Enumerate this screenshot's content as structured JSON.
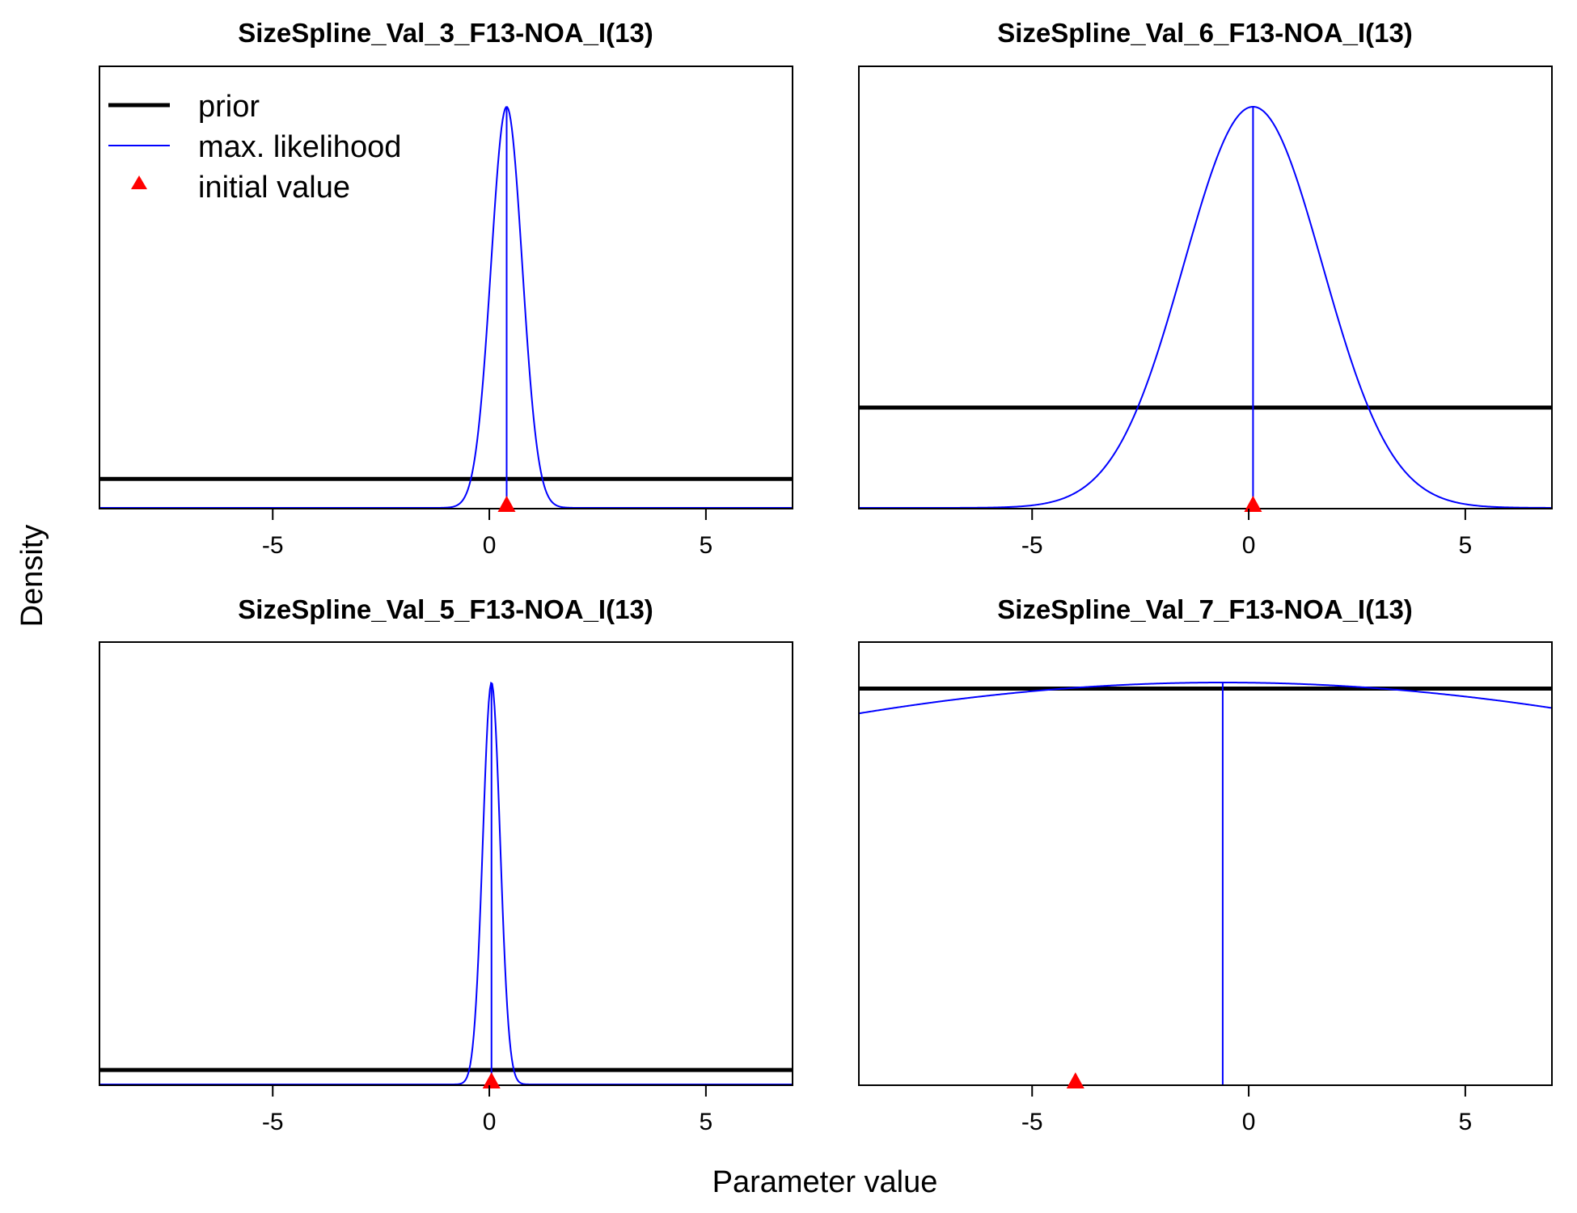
{
  "figure": {
    "xlabel": "Parameter value",
    "ylabel": "Density"
  },
  "legend": {
    "position": "top-left",
    "entries": [
      {
        "label": "prior",
        "style": "thick-line",
        "color": "#000000"
      },
      {
        "label": "max. likelihood",
        "style": "thin-line",
        "color": "#0000FF"
      },
      {
        "label": "initial value",
        "style": "triangle",
        "color": "#FF0000"
      }
    ]
  },
  "colors": {
    "prior": "#000000",
    "likelihood": "#0000FF",
    "initial": "#FF0000"
  },
  "chart_data": [
    {
      "type": "line",
      "title": "SizeSpline_Val_3_F13-NOA_I(13)",
      "xlim": [
        -9,
        7
      ],
      "xticks": [
        -5,
        0,
        5
      ],
      "prior_density": 0.072,
      "likelihood": {
        "mean": 0.4,
        "sd": 0.36,
        "peak": 1.0
      },
      "initial_value": 0.4
    },
    {
      "type": "line",
      "title": "SizeSpline_Val_6_F13-NOA_I(13)",
      "xlim": [
        -9,
        7
      ],
      "xticks": [
        -5,
        0,
        5
      ],
      "prior_density": 0.25,
      "likelihood": {
        "mean": 0.1,
        "sd": 1.6,
        "peak": 1.0
      },
      "initial_value": 0.1
    },
    {
      "type": "line",
      "title": "SizeSpline_Val_5_F13-NOA_I(13)",
      "xlim": [
        -9,
        7
      ],
      "xticks": [
        -5,
        0,
        5
      ],
      "prior_density": 0.036,
      "likelihood": {
        "mean": 0.05,
        "sd": 0.2,
        "peak": 1.0
      },
      "initial_value": 0.05
    },
    {
      "type": "line",
      "title": "SizeSpline_Val_7_F13-NOA_I(13)",
      "xlim": [
        -9,
        7
      ],
      "xticks": [
        -5,
        0,
        5
      ],
      "prior_density": 0.985,
      "likelihood": {
        "mean": -0.6,
        "sd": 21,
        "peak": 1.0
      },
      "initial_value": -4
    }
  ]
}
